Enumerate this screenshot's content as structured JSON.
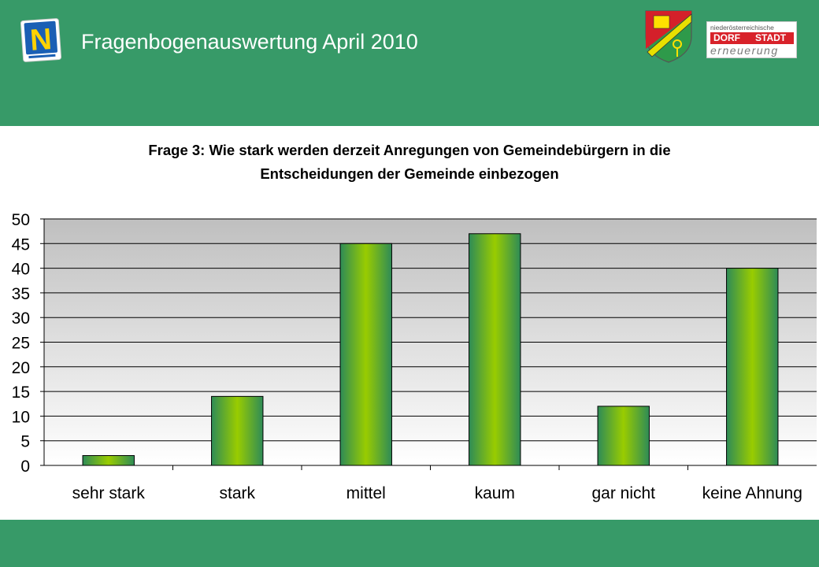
{
  "header": {
    "title": "Fragenbogenauswertung April 2010",
    "logo_letter": "N",
    "brand_top": "niederösterreichische",
    "brand_dorf": "DORF",
    "brand_stadt": "STADT",
    "brand_bottom": "erneuerung"
  },
  "colors": {
    "band": "#379a68",
    "plot_top": "#bfbfbf",
    "plot_bottom": "#ffffff",
    "bar_edge": "#2e8b57",
    "bar_center": "#99cc00"
  },
  "chart_data": {
    "type": "bar",
    "title_lines": [
      "Frage 3: Wie stark werden derzeit Anregungen von Gemeindebürgern in die",
      "Entscheidungen der Gemeinde einbezogen"
    ],
    "categories": [
      "sehr stark",
      "stark",
      "mittel",
      "kaum",
      "gar nicht",
      "keine Ahnung"
    ],
    "values": [
      2,
      14,
      45,
      47,
      12,
      40
    ],
    "ylim": [
      0,
      50
    ],
    "yticks": [
      0,
      5,
      10,
      15,
      20,
      25,
      30,
      35,
      40,
      45,
      50
    ],
    "xlabel": "",
    "ylabel": "",
    "grid": true,
    "legend": "none"
  }
}
